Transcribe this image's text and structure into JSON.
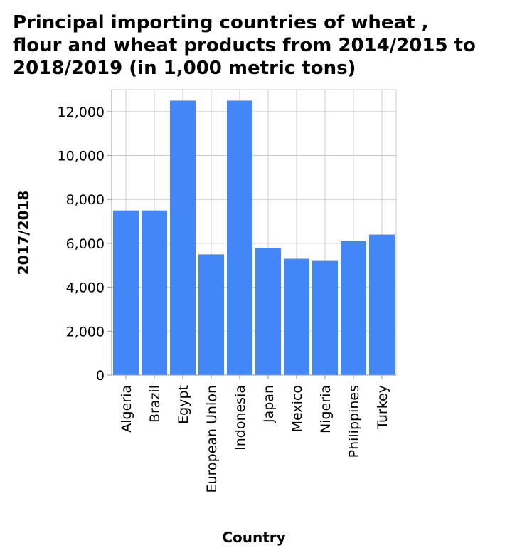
{
  "chart_data": {
    "type": "bar",
    "title_lines": [
      "Principal importing countries of wheat ,",
      "flour and wheat products from 2014/2015 to",
      "2018/2019 (in 1,000 metric tons)"
    ],
    "xlabel": "Country",
    "ylabel": "2017/2018",
    "categories": [
      "Algeria",
      "Brazil",
      "Egypt",
      "European Union",
      "Indonesia",
      "Japan",
      "Mexico",
      "Nigeria",
      "Philippines",
      "Turkey"
    ],
    "values": [
      7500,
      7500,
      12500,
      5500,
      12500,
      5800,
      5300,
      5200,
      6100,
      6400
    ],
    "ylim": [
      0,
      13000
    ],
    "yticks": [
      0,
      2000,
      4000,
      6000,
      8000,
      10000,
      12000
    ],
    "ytick_labels": [
      "0",
      "2,000",
      "4,000",
      "6,000",
      "8,000",
      "10,000",
      "12,000"
    ],
    "grid": true,
    "bar_color": "#4287f5"
  }
}
